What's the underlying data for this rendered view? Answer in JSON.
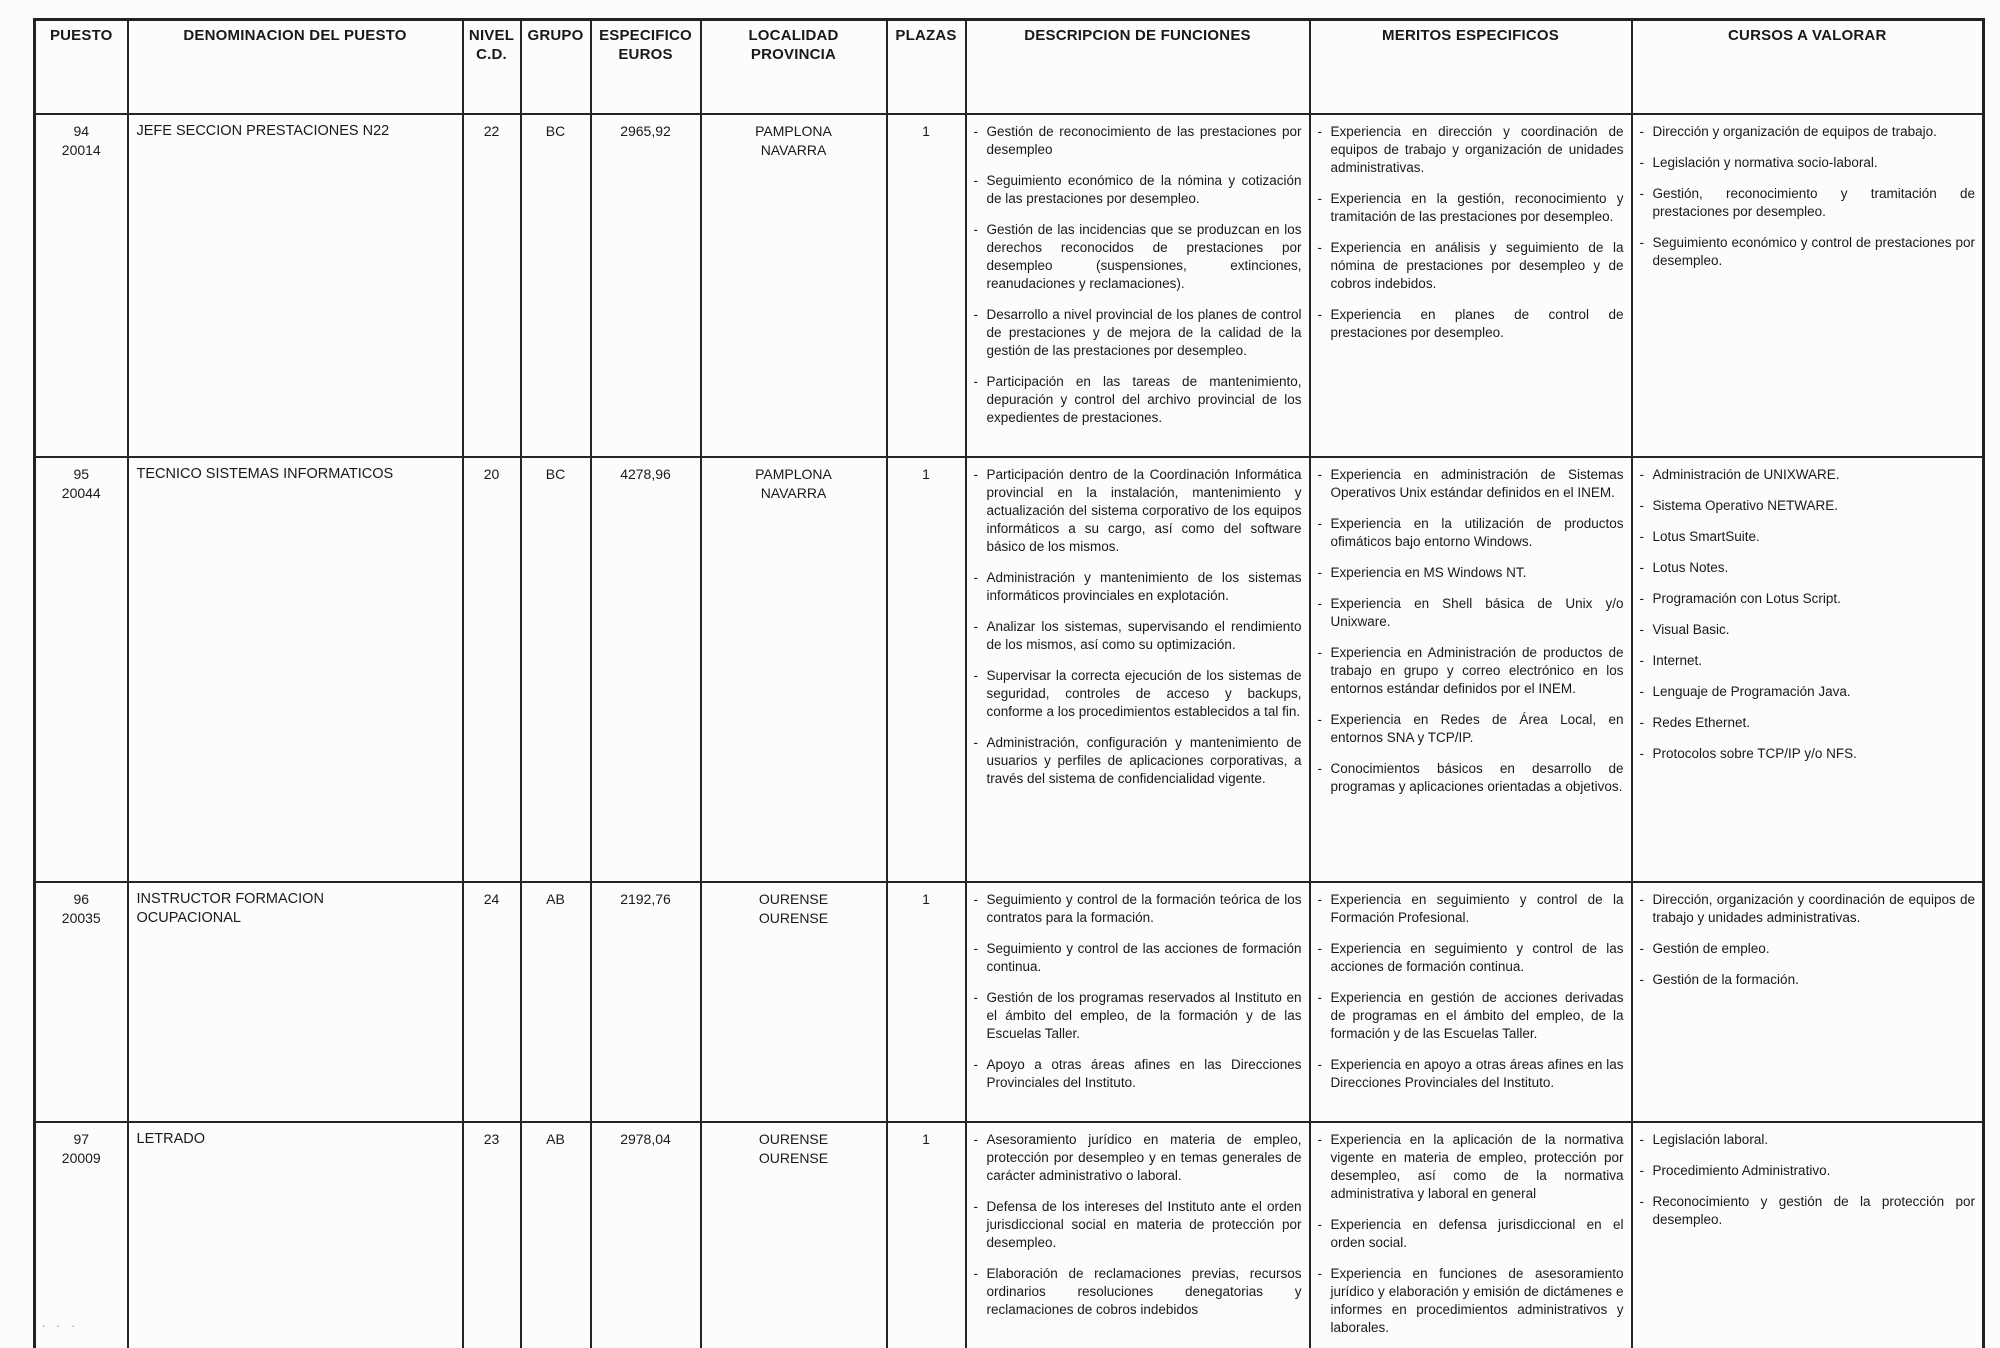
{
  "page": {
    "artifact_dots": ". .  ."
  },
  "table": {
    "headers": {
      "puesto": "PUESTO",
      "denominacion": "DENOMINACION DEL PUESTO",
      "nivel": "NIVEL\nC.D.",
      "grupo": "GRUPO",
      "especifico": "ESPECIFICO\nEUROS",
      "localidad": "LOCALIDAD\nPROVINCIA",
      "plazas": "PLAZAS",
      "funciones": "DESCRIPCION DE FUNCIONES",
      "meritos": "MERITOS ESPECIFICOS",
      "cursos": "CURSOS A VALORAR"
    },
    "rows": [
      {
        "puesto": "94",
        "codigo": "20014",
        "denominacion": "JEFE SECCION PRESTACIONES N22",
        "nivel": "22",
        "grupo": "BC",
        "especifico_euros": "2965,92",
        "localidad": "PAMPLONA",
        "provincia": "NAVARRA",
        "plazas": "1",
        "funciones": [
          "Gestión de reconocimiento de las prestaciones por desempleo",
          "Seguimiento económico de la nómina y cotización de las prestaciones por desempleo.",
          "Gestión de las incidencias que se produzcan en los derechos reconocidos de prestaciones por desempleo (suspensiones, extinciones, reanudaciones y reclamaciones).",
          "Desarrollo a nivel provincial de los planes de control de prestaciones y de mejora de la calidad de la gestión de las prestaciones por desempleo.",
          "Participación en las tareas de mantenimiento, depuración y control del archivo provincial de los expedientes de prestaciones."
        ],
        "meritos": [
          "Experiencia en dirección y coordinación de equipos de trabajo y organización de unidades administrativas.",
          "Experiencia en la gestión, reconocimiento y tramitación de las prestaciones por desempleo.",
          "Experiencia en análisis y seguimiento de la nómina de prestaciones por desempleo y de cobros indebidos.",
          "Experiencia en planes de control de prestaciones por desempleo."
        ],
        "cursos": [
          "Dirección y organización de equipos de trabajo.",
          "Legislación y normativa socio-laboral.",
          "Gestión, reconocimiento y tramitación de prestaciones por desempleo.",
          "Seguimiento económico y control de prestaciones por desempleo."
        ]
      },
      {
        "puesto": "95",
        "codigo": "20044",
        "denominacion": "TECNICO SISTEMAS INFORMATICOS",
        "nivel": "20",
        "grupo": "BC",
        "especifico_euros": "4278,96",
        "localidad": "PAMPLONA",
        "provincia": "NAVARRA",
        "plazas": "1",
        "funciones": [
          "Participación dentro de la Coordinación Informática provincial en la instalación, mantenimiento y actualización del sistema corporativo de los equipos informáticos a su cargo, así como del software básico de los mismos.",
          "Administración y mantenimiento de los sistemas informáticos provinciales en explotación.",
          "Analizar los sistemas, supervisando el rendimiento de los mismos, así como su optimización.",
          "Supervisar la correcta ejecución de los sistemas de seguridad, controles de acceso y backups, conforme a los procedimientos establecidos a tal fin.",
          "Administración, configuración y mantenimiento de usuarios y perfiles de aplicaciones corporativas, a través del sistema de confidencialidad vigente."
        ],
        "meritos": [
          "Experiencia en administración de Sistemas Operativos Unix estándar definidos en el INEM.",
          "Experiencia en la utilización de productos ofimáticos bajo entorno Windows.",
          "Experiencia en MS Windows NT.",
          "Experiencia en Shell básica de Unix y/o Unixware.",
          "Experiencia en Administración de productos de trabajo en grupo y correo electrónico en los entornos estándar definidos por el INEM.",
          "Experiencia en Redes de Área Local, en entornos SNA y TCP/IP.",
          "Conocimientos básicos en desarrollo de programas y aplicaciones orientadas a objetivos."
        ],
        "cursos": [
          "Administración de UNIXWARE.",
          "Sistema Operativo NETWARE.",
          "Lotus SmartSuite.",
          "Lotus Notes.",
          "Programación con Lotus Script.",
          "Visual Basic.",
          "Internet.",
          "Lenguaje de Programación Java.",
          "Redes Ethernet.",
          "Protocolos sobre TCP/IP y/o NFS."
        ]
      },
      {
        "puesto": "96",
        "codigo": "20035",
        "denominacion": "INSTRUCTOR FORMACION\nOCUPACIONAL",
        "nivel": "24",
        "grupo": "AB",
        "especifico_euros": "2192,76",
        "localidad": "OURENSE",
        "provincia": "OURENSE",
        "plazas": "1",
        "funciones": [
          "Seguimiento y control de la formación teórica de los contratos para la formación.",
          "Seguimiento y control de las acciones de formación continua.",
          "Gestión de los programas reservados al Instituto en el ámbito del empleo, de la formación y de las Escuelas Taller.",
          "Apoyo a otras áreas afines en las Direcciones Provinciales del Instituto."
        ],
        "meritos": [
          "Experiencia en seguimiento y control de la Formación Profesional.",
          "Experiencia en seguimiento y control de las acciones de formación continua.",
          "Experiencia en gestión de acciones derivadas de programas en el ámbito del empleo, de la formación y de las Escuelas Taller.",
          "Experiencia en apoyo a otras áreas afines en las Direcciones Provinciales del Instituto."
        ],
        "cursos": [
          "Dirección, organización y coordinación de equipos de trabajo y unidades administrativas.",
          "Gestión de empleo.",
          "Gestión de la formación."
        ]
      },
      {
        "puesto": "97",
        "codigo": "20009",
        "denominacion": "LETRADO",
        "nivel": "23",
        "grupo": "AB",
        "especifico_euros": "2978,04",
        "localidad": "OURENSE",
        "provincia": "OURENSE",
        "plazas": "1",
        "funciones": [
          "Asesoramiento jurídico en materia de empleo, protección por desempleo y en temas generales de carácter administrativo o laboral.",
          "Defensa de los intereses del Instituto ante el orden jurisdiccional social en materia de protección por desempleo.",
          "Elaboración de reclamaciones previas, recursos ordinarios resoluciones denegatorias y reclamaciones de cobros indebidos"
        ],
        "meritos": [
          "Experiencia en la aplicación de la normativa vigente en materia de empleo, protección por desempleo, así como de la normativa administrativa y laboral en general",
          "Experiencia en defensa jurisdiccional en el orden social.",
          "Experiencia en funciones de asesoramiento jurídico y elaboración y emisión de dictámenes e informes en procedimientos administrativos y laborales."
        ],
        "cursos": [
          "Legislación laboral.",
          "Procedimiento Administrativo.",
          "Reconocimiento y gestión de la protección por desempleo."
        ]
      }
    ]
  }
}
